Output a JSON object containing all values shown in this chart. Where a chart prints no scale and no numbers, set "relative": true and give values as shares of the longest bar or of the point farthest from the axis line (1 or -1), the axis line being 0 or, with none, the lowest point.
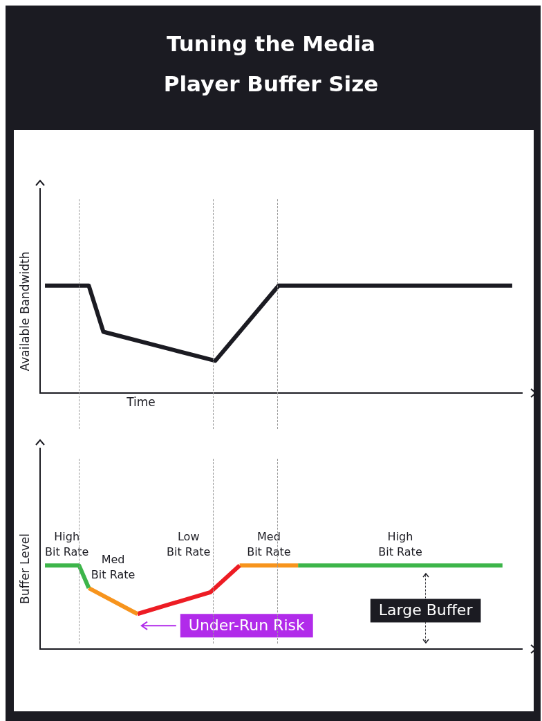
{
  "chart_data": [
    {
      "type": "line",
      "title": "Tuning the Media Player Buffer Size",
      "xlabel": "Time",
      "ylabel": "Available Bandwidth",
      "relative": true,
      "legend": false,
      "marker": "none",
      "line_style": "solid",
      "categories": [
        null,
        null,
        null,
        null,
        null,
        null,
        null,
        null,
        null,
        null,
        null,
        null,
        null,
        null,
        null,
        null,
        null,
        null,
        null,
        null,
        null,
        null,
        null,
        null,
        null,
        null,
        null,
        null,
        null,
        null,
        null,
        null,
        null,
        null,
        null,
        null,
        null,
        null,
        null,
        null,
        null,
        null,
        null,
        null,
        null,
        null,
        null,
        null,
        null,
        null,
        null,
        null,
        null,
        null,
        null,
        null,
        null,
        null,
        null,
        null,
        null,
        null,
        null,
        null,
        null,
        null,
        null,
        null,
        null,
        null,
        null,
        null,
        null,
        null,
        null,
        null,
        null,
        null,
        null,
        null,
        null,
        null,
        null,
        null,
        null,
        null,
        null,
        null,
        null,
        null,
        null,
        null,
        null,
        null,
        null,
        null,
        null,
        null,
        null,
        null
      ],
      "series": [
        {
          "color": "#1b1b22",
          "values": [
            null,
            1,
            null,
            null,
            null,
            null,
            null,
            null,
            null,
            null,
            1,
            null,
            null,
            0.57,
            null,
            null,
            null,
            null,
            null,
            null,
            null,
            null,
            null,
            null,
            null,
            null,
            null,
            null,
            null,
            null,
            null,
            null,
            null,
            null,
            null,
            null,
            0.3,
            null,
            null,
            null,
            null,
            null,
            null,
            null,
            null,
            null,
            null,
            null,
            null,
            1,
            null,
            null,
            null,
            null,
            null,
            null,
            null,
            null,
            null,
            null,
            null,
            null,
            null,
            null,
            null,
            null,
            null,
            null,
            null,
            null,
            null,
            null,
            null,
            null,
            null,
            null,
            null,
            null,
            null,
            null,
            null,
            null,
            null,
            null,
            null,
            null,
            null,
            null,
            null,
            null,
            null,
            null,
            null,
            null,
            null,
            null,
            null,
            1,
            null,
            null
          ]
        }
      ]
    },
    {
      "type": "line",
      "ylabel": "Buffer Level",
      "relative": true,
      "legend": false,
      "marker": "none",
      "line_style": "solid",
      "categories": [
        null,
        null,
        null,
        null,
        null,
        null,
        null,
        null,
        null,
        null,
        null,
        null,
        null,
        null,
        null,
        null,
        null,
        null,
        null,
        null,
        null,
        null,
        null,
        null,
        null,
        null,
        null,
        null,
        null,
        null,
        null,
        null,
        null,
        null,
        null,
        null,
        null,
        null,
        null,
        null,
        null,
        null,
        null,
        null,
        null,
        null,
        null,
        null,
        null,
        null,
        null,
        null,
        null,
        null,
        null,
        null,
        null,
        null,
        null,
        null,
        null,
        null,
        null,
        null,
        null,
        null,
        null,
        null,
        null,
        null,
        null,
        null,
        null,
        null,
        null,
        null,
        null,
        null,
        null,
        null,
        null,
        null,
        null,
        null,
        null,
        null,
        null,
        null,
        null,
        null,
        null,
        null,
        null,
        null,
        null,
        null,
        null,
        null,
        null,
        null
      ],
      "series": [
        {
          "name": "High\nBit Rate",
          "color": "#3db54a",
          "values": [
            null,
            1,
            null,
            null,
            null,
            null,
            null,
            null,
            1,
            null,
            0.73,
            null,
            null,
            null,
            null,
            null,
            null,
            null,
            null,
            null,
            null,
            null,
            null,
            null,
            null,
            null,
            null,
            null,
            null,
            null,
            null,
            null,
            null,
            null,
            null,
            null,
            null,
            null,
            null,
            null,
            null,
            null,
            null,
            null,
            null,
            null,
            null,
            null,
            null,
            null,
            null,
            null,
            null,
            null,
            null,
            null,
            null,
            null,
            null,
            null,
            null,
            null,
            null,
            null,
            null,
            null,
            null,
            null,
            null,
            null,
            null,
            null,
            null,
            null,
            null,
            null,
            null,
            null,
            null,
            null,
            null,
            null,
            null,
            null,
            null,
            null,
            null,
            null,
            null,
            null,
            null,
            null,
            null,
            null,
            null,
            null,
            null,
            null,
            null,
            null
          ]
        },
        {
          "name": "Med\nBit Rate",
          "color": "#f7941d",
          "values": [
            null,
            null,
            null,
            null,
            null,
            null,
            null,
            null,
            null,
            null,
            0.73,
            null,
            null,
            null,
            null,
            null,
            null,
            null,
            null,
            null,
            0.42,
            null,
            null,
            null,
            null,
            null,
            null,
            null,
            null,
            null,
            null,
            null,
            null,
            null,
            null,
            null,
            null,
            null,
            null,
            null,
            null,
            null,
            null,
            null,
            null,
            null,
            null,
            null,
            null,
            null,
            null,
            null,
            null,
            null,
            null,
            null,
            null,
            null,
            null,
            null,
            null,
            null,
            null,
            null,
            null,
            null,
            null,
            null,
            null,
            null,
            null,
            null,
            null,
            null,
            null,
            null,
            null,
            null,
            null,
            null,
            null,
            null,
            null,
            null,
            null,
            null,
            null,
            null,
            null,
            null,
            null,
            null,
            null,
            null,
            null,
            null,
            null,
            null,
            null,
            null
          ]
        },
        {
          "name": "Low\nBit Rate",
          "color": "#ed1c24",
          "values": [
            null,
            null,
            null,
            null,
            null,
            null,
            null,
            null,
            null,
            null,
            null,
            null,
            null,
            null,
            null,
            null,
            null,
            null,
            null,
            null,
            0.42,
            null,
            null,
            null,
            null,
            null,
            null,
            null,
            null,
            null,
            null,
            null,
            null,
            null,
            null,
            0.68,
            null,
            null,
            null,
            null,
            null,
            1,
            null,
            null,
            null,
            null,
            null,
            null,
            null,
            null,
            null,
            null,
            null,
            null,
            null,
            null,
            null,
            null,
            null,
            null,
            null,
            null,
            null,
            null,
            null,
            null,
            null,
            null,
            null,
            null,
            null,
            null,
            null,
            null,
            null,
            null,
            null,
            null,
            null,
            null,
            null,
            null,
            null,
            null,
            null,
            null,
            null,
            null,
            null,
            null,
            null,
            null,
            null,
            null,
            null,
            null,
            null,
            null,
            null,
            null
          ]
        },
        {
          "name": "Med\nBit Rate",
          "color": "#f7941d",
          "values": [
            null,
            null,
            null,
            null,
            null,
            null,
            null,
            null,
            null,
            null,
            null,
            null,
            null,
            null,
            null,
            null,
            null,
            null,
            null,
            null,
            null,
            null,
            null,
            null,
            null,
            null,
            null,
            null,
            null,
            null,
            null,
            null,
            null,
            null,
            null,
            null,
            null,
            null,
            null,
            null,
            null,
            1,
            null,
            null,
            null,
            null,
            null,
            null,
            null,
            null,
            null,
            null,
            null,
            1,
            null,
            null,
            null,
            null,
            null,
            null,
            null,
            null,
            null,
            null,
            null,
            null,
            null,
            null,
            null,
            null,
            null,
            null,
            null,
            null,
            null,
            null,
            null,
            null,
            null,
            null,
            null,
            null,
            null,
            null,
            null,
            null,
            null,
            null,
            null,
            null,
            null,
            null,
            null,
            null,
            null,
            null,
            null,
            null,
            null,
            null
          ]
        },
        {
          "name": "High\nBit Rate",
          "color": "#3db54a",
          "values": [
            null,
            null,
            null,
            null,
            null,
            null,
            null,
            null,
            null,
            null,
            null,
            null,
            null,
            null,
            null,
            null,
            null,
            null,
            null,
            null,
            null,
            null,
            null,
            null,
            null,
            null,
            null,
            null,
            null,
            null,
            null,
            null,
            null,
            null,
            null,
            null,
            null,
            null,
            null,
            null,
            null,
            null,
            null,
            null,
            null,
            null,
            null,
            null,
            null,
            null,
            null,
            null,
            null,
            1,
            null,
            null,
            null,
            null,
            null,
            null,
            null,
            null,
            null,
            null,
            null,
            null,
            null,
            null,
            null,
            null,
            null,
            null,
            null,
            null,
            null,
            null,
            null,
            null,
            null,
            null,
            null,
            null,
            null,
            null,
            null,
            null,
            null,
            null,
            null,
            null,
            null,
            null,
            null,
            null,
            null,
            1,
            null,
            null,
            null,
            null
          ]
        }
      ],
      "annotations": [
        "Under-Run Risk",
        "Large Buffer"
      ]
    }
  ]
}
